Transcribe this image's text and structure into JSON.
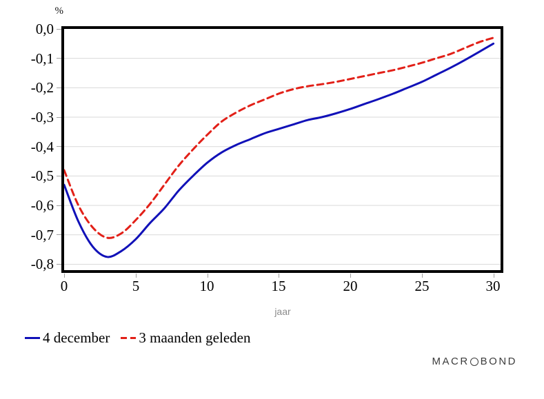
{
  "chart": {
    "y_axis_unit": "%",
    "x_axis_label": "jaar",
    "y_ticks": [
      "0,0",
      "-0,1",
      "-0,2",
      "-0,3",
      "-0,4",
      "-0,5",
      "-0,6",
      "-0,7",
      "-0,8"
    ],
    "x_ticks": [
      "0",
      "5",
      "10",
      "15",
      "20",
      "25",
      "30"
    ],
    "grid_color": "#d9d9d9",
    "frame_color": "#000000"
  },
  "legend": {
    "items": [
      {
        "label": "4 december",
        "color": "#1111b8",
        "style": "solid"
      },
      {
        "label": "3 maanden geleden",
        "color": "#e22018",
        "style": "dashed"
      }
    ]
  },
  "branding": {
    "left": "MACR",
    "right": "BOND"
  },
  "chart_data": {
    "type": "line",
    "title": "",
    "xlabel": "jaar",
    "ylabel": "%",
    "xlim": [
      0,
      30.5
    ],
    "ylim": [
      -0.82,
      0
    ],
    "x_tick_values": [
      0,
      5,
      10,
      15,
      20,
      25,
      30
    ],
    "y_tick_values": [
      0,
      -0.1,
      -0.2,
      -0.3,
      -0.4,
      -0.5,
      -0.6,
      -0.7,
      -0.8
    ],
    "grid": true,
    "legend_position": "bottom-left",
    "x": [
      0,
      1,
      2,
      3,
      4,
      5,
      6,
      7,
      8,
      9,
      10,
      11,
      12,
      13,
      14,
      15,
      16,
      17,
      18,
      19,
      20,
      21,
      22,
      23,
      24,
      25,
      26,
      27,
      28,
      29,
      30
    ],
    "series": [
      {
        "name": "4 december",
        "color": "#1111b8",
        "style": "solid",
        "values": [
          -0.53,
          -0.655,
          -0.74,
          -0.775,
          -0.755,
          -0.715,
          -0.66,
          -0.61,
          -0.55,
          -0.5,
          -0.455,
          -0.42,
          -0.395,
          -0.375,
          -0.355,
          -0.34,
          -0.325,
          -0.31,
          -0.3,
          -0.287,
          -0.272,
          -0.255,
          -0.238,
          -0.22,
          -0.2,
          -0.18,
          -0.156,
          -0.132,
          -0.106,
          -0.078,
          -0.05
        ]
      },
      {
        "name": "3 maanden geleden",
        "color": "#e22018",
        "style": "dashed",
        "values": [
          -0.48,
          -0.6,
          -0.675,
          -0.71,
          -0.695,
          -0.65,
          -0.595,
          -0.53,
          -0.465,
          -0.41,
          -0.36,
          -0.315,
          -0.285,
          -0.26,
          -0.24,
          -0.22,
          -0.205,
          -0.195,
          -0.188,
          -0.18,
          -0.17,
          -0.16,
          -0.15,
          -0.14,
          -0.128,
          -0.115,
          -0.1,
          -0.085,
          -0.065,
          -0.045,
          -0.03
        ]
      }
    ]
  }
}
